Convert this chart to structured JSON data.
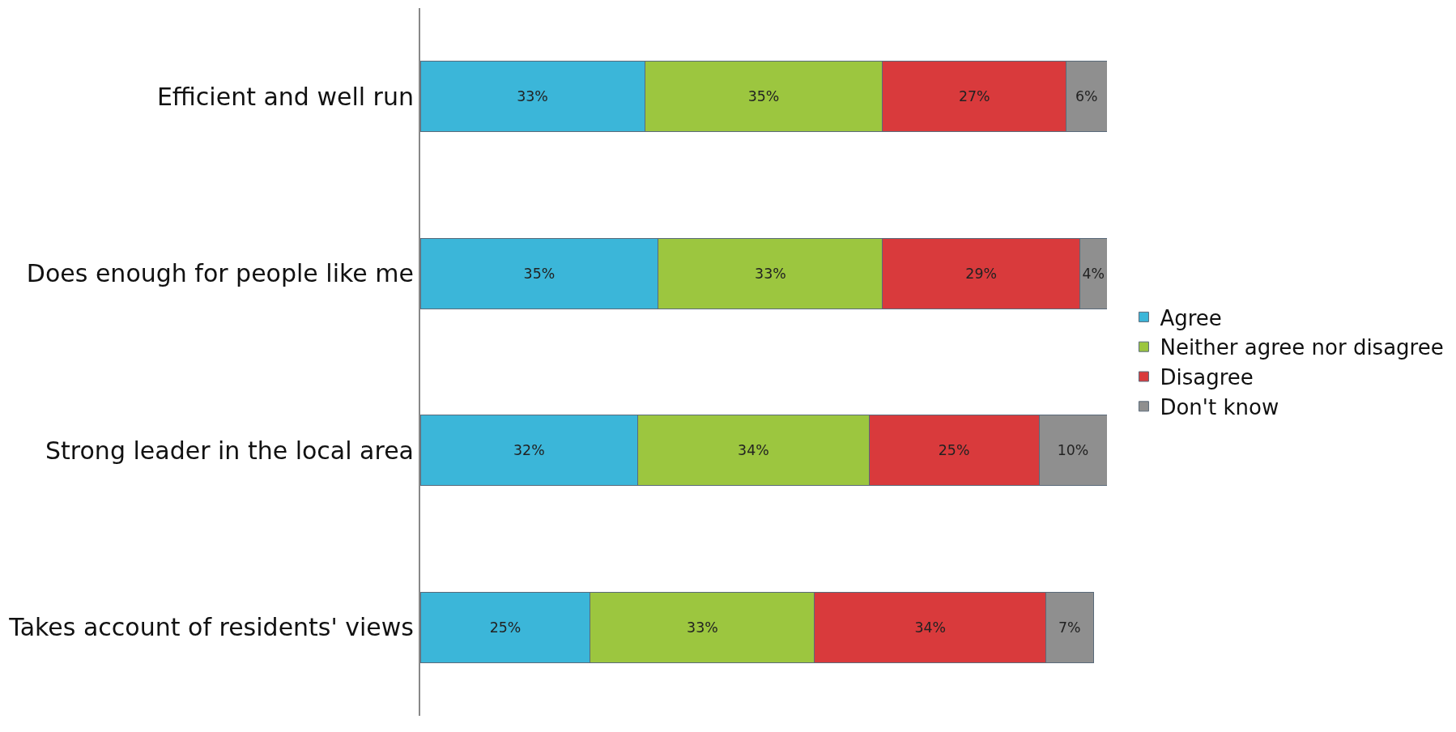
{
  "chart_data": {
    "type": "bar",
    "orientation": "horizontal",
    "stacked": true,
    "legend": "right",
    "categories": [
      "Efficient and well run",
      "Does enough for people like me",
      "Strong leader in the local area",
      "Takes account of residents' views"
    ],
    "series": [
      {
        "name": "Agree",
        "color": "#3bb6d9",
        "values": [
          33,
          35,
          32,
          25
        ],
        "value_labels": [
          "33%",
          "35%",
          "32%",
          "25%"
        ]
      },
      {
        "name": "Neither agree nor disagree",
        "color": "#9cc63f",
        "values": [
          35,
          33,
          34,
          33
        ],
        "value_labels": [
          "35%",
          "33%",
          "34%",
          "33%"
        ]
      },
      {
        "name": "Disagree",
        "color": "#d93a3c",
        "values": [
          27,
          29,
          25,
          34
        ],
        "value_labels": [
          "27%",
          "29%",
          "25%",
          "34%"
        ]
      },
      {
        "name": "Don't know",
        "color": "#8f8f8f",
        "values": [
          6,
          4,
          10,
          7
        ],
        "value_labels": [
          "6%",
          "4%",
          "10%",
          "7%"
        ]
      }
    ]
  }
}
